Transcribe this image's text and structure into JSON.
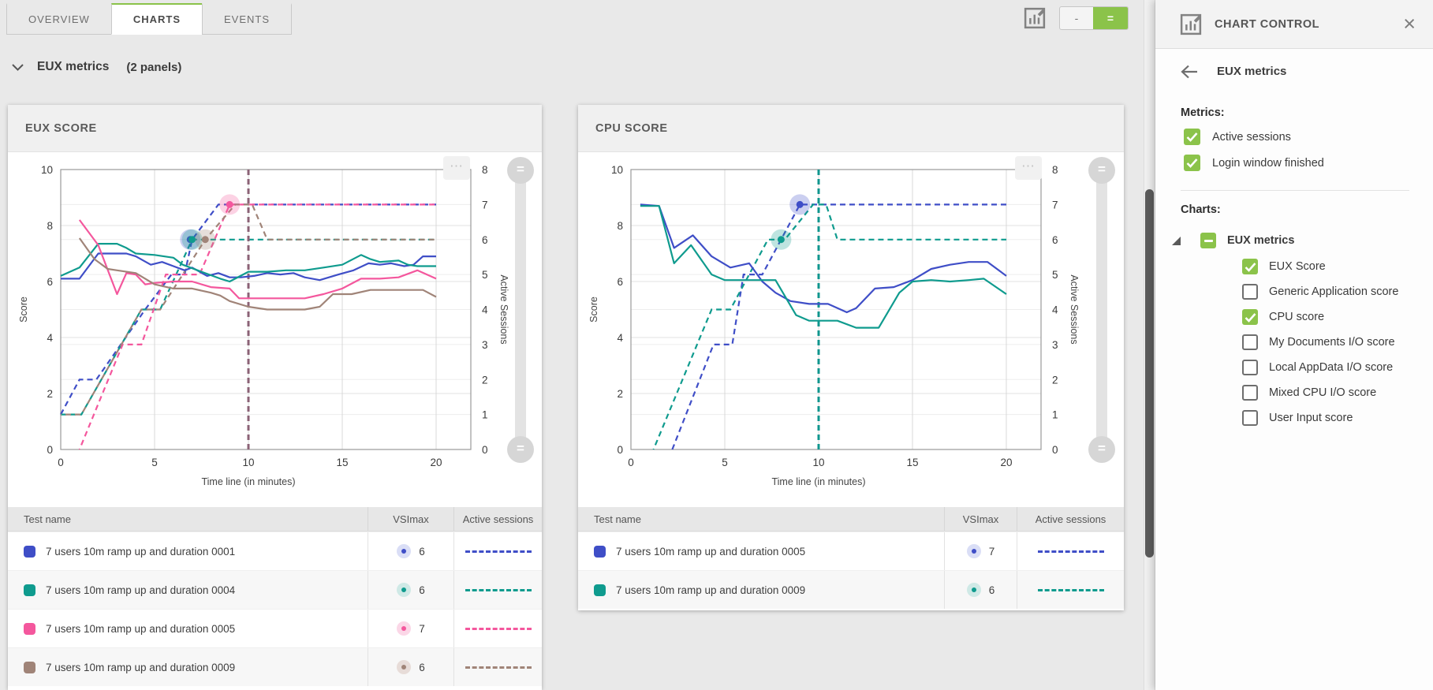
{
  "tabs": [
    {
      "id": "overview",
      "label": "OVERVIEW",
      "active": false
    },
    {
      "id": "charts",
      "label": "CHARTS",
      "active": true
    },
    {
      "id": "events",
      "label": "EVENTS",
      "active": false
    }
  ],
  "toolbar": {
    "minimize_label": "-",
    "grid_label": "=",
    "chart_edit_icon": "chart-edit"
  },
  "group_header": {
    "title": "EUX metrics",
    "panel_count": "(2 panels)"
  },
  "icons": {
    "more": "⋯",
    "equals": "=",
    "close": "×"
  },
  "colors": {
    "accent_green": "#8bc34a",
    "blue": "#3f4ec7",
    "teal": "#0f9b8e",
    "pink": "#f4579d",
    "brown": "#a08478"
  },
  "panels": [
    {
      "title": "EUX SCORE",
      "table": {
        "headers": [
          "Test name",
          "VSImax",
          "Active sessions"
        ],
        "rows": [
          {
            "name": "7 users 10m ramp up and duration 0001",
            "color": "#3f4ec7",
            "tint": "#dadef6",
            "vsimax": 6
          },
          {
            "name": "7 users 10m ramp up and duration 0004",
            "color": "#0f9b8e",
            "tint": "#cfe9e6",
            "vsimax": 6
          },
          {
            "name": "7 users 10m ramp up and duration 0005",
            "color": "#f4579d",
            "tint": "#fbd7e7",
            "vsimax": 7
          },
          {
            "name": "7 users 10m ramp up and duration 0009",
            "color": "#a08478",
            "tint": "#e7dcd8",
            "vsimax": 6
          }
        ]
      }
    },
    {
      "title": "CPU SCORE",
      "table": {
        "headers": [
          "Test name",
          "VSImax",
          "Active sessions"
        ],
        "rows": [
          {
            "name": "7 users 10m ramp up and duration 0005",
            "color": "#3f4ec7",
            "tint": "#dadef6",
            "vsimax": 7
          },
          {
            "name": "7 users 10m ramp up and duration 0009",
            "color": "#0f9b8e",
            "tint": "#cfe9e6",
            "vsimax": 6
          }
        ]
      }
    }
  ],
  "chart_data": [
    {
      "type": "line",
      "title": "EUX SCORE",
      "x_axis": {
        "label": "Time line (in minutes)",
        "ticks": [
          0,
          5,
          10,
          15,
          20
        ],
        "min": 0,
        "max": 20
      },
      "y_axis_left": {
        "label": "Score",
        "min": 0,
        "max": 10,
        "ticks": [
          0,
          2,
          4,
          6,
          8,
          10
        ]
      },
      "y_axis_right": {
        "label": "Active Sessions",
        "min": 0,
        "max": 8,
        "ticks": [
          0,
          1,
          2,
          3,
          4,
          5,
          6,
          7,
          8
        ]
      },
      "grid": true,
      "vlines": [
        {
          "x": 10,
          "color": "#8b6276"
        }
      ],
      "series": [
        {
          "name": "7 users 10m ramp up and duration 0001",
          "color": "#3f4ec7",
          "score": [
            [
              0,
              6.1
            ],
            [
              1,
              6.1
            ],
            [
              2,
              7.0
            ],
            [
              3.5,
              7.0
            ],
            [
              4,
              6.9
            ],
            [
              4.8,
              6.6
            ],
            [
              5.4,
              6.7
            ],
            [
              6,
              6.55
            ],
            [
              6.6,
              6.4
            ],
            [
              7,
              6.5
            ],
            [
              7.8,
              6.2
            ],
            [
              8.4,
              6.3
            ],
            [
              9,
              6.15
            ],
            [
              9.6,
              6.15
            ],
            [
              10.3,
              6.2
            ],
            [
              11,
              6.3
            ],
            [
              11.7,
              6.25
            ],
            [
              12.4,
              6.3
            ],
            [
              13,
              6.15
            ],
            [
              13.8,
              6.05
            ],
            [
              14.8,
              6.25
            ],
            [
              15.6,
              6.4
            ],
            [
              16.4,
              6.65
            ],
            [
              17,
              6.6
            ],
            [
              17.6,
              6.65
            ],
            [
              18.3,
              6.55
            ],
            [
              18.8,
              6.6
            ],
            [
              19.3,
              6.9
            ],
            [
              20,
              6.9
            ]
          ],
          "sessions": [
            [
              0,
              1
            ],
            [
              1,
              2
            ],
            [
              1.9,
              2
            ],
            [
              4.5,
              4
            ],
            [
              5.9,
              5
            ],
            [
              6.6,
              5
            ],
            [
              7,
              6
            ],
            [
              8.4,
              7
            ],
            [
              20,
              7
            ]
          ],
          "vsimax_marker": {
            "x": 6.9,
            "sessions": 6
          }
        },
        {
          "name": "7 users 10m ramp up and duration 0004",
          "color": "#0f9b8e",
          "score": [
            [
              0,
              6.2
            ],
            [
              1,
              6.5
            ],
            [
              2,
              7.35
            ],
            [
              3,
              7.35
            ],
            [
              3.5,
              7.2
            ],
            [
              4,
              7.0
            ],
            [
              5,
              6.95
            ],
            [
              6,
              6.85
            ],
            [
              6.5,
              6.6
            ],
            [
              7.5,
              6.35
            ],
            [
              8.5,
              6.1
            ],
            [
              9,
              6.0
            ],
            [
              10,
              6.35
            ],
            [
              11,
              6.35
            ],
            [
              12,
              6.4
            ],
            [
              13,
              6.4
            ],
            [
              14,
              6.5
            ],
            [
              15,
              6.6
            ],
            [
              16,
              6.95
            ],
            [
              16.5,
              6.8
            ],
            [
              17,
              6.7
            ],
            [
              18,
              6.75
            ],
            [
              18.5,
              6.6
            ],
            [
              19,
              6.55
            ],
            [
              20,
              6.55
            ]
          ],
          "sessions": [
            [
              0,
              1
            ],
            [
              1.1,
              1
            ],
            [
              4.3,
              4
            ],
            [
              5.3,
              4
            ],
            [
              7,
              6
            ],
            [
              20,
              6
            ]
          ],
          "vsimax_marker": {
            "x": 7,
            "sessions": 6
          }
        },
        {
          "name": "7 users 10m ramp up and duration 0005",
          "color": "#f4579d",
          "score": [
            [
              1,
              8.2
            ],
            [
              2,
              7.3
            ],
            [
              3,
              5.55
            ],
            [
              3.5,
              6.3
            ],
            [
              4,
              6.25
            ],
            [
              4.5,
              5.9
            ],
            [
              5,
              5.95
            ],
            [
              6,
              6.0
            ],
            [
              7,
              6.0
            ],
            [
              8,
              5.8
            ],
            [
              9,
              5.75
            ],
            [
              9.5,
              5.4
            ],
            [
              10,
              5.4
            ],
            [
              12,
              5.4
            ],
            [
              13,
              5.4
            ],
            [
              14,
              5.55
            ],
            [
              15,
              5.75
            ],
            [
              16,
              6.1
            ],
            [
              17,
              6.1
            ],
            [
              18,
              6.15
            ],
            [
              19,
              6.4
            ],
            [
              20,
              6.1
            ]
          ],
          "sessions": [
            [
              1,
              0
            ],
            [
              3.3,
              3
            ],
            [
              4.3,
              3
            ],
            [
              5.6,
              5
            ],
            [
              7.4,
              5
            ],
            [
              9,
              7
            ],
            [
              20,
              7
            ]
          ],
          "dash_offset": true,
          "vsimax_marker": {
            "x": 9,
            "sessions": 7
          }
        },
        {
          "name": "7 users 10m ramp up and duration 0009",
          "color": "#a08478",
          "score": [
            [
              1,
              7.55
            ],
            [
              1.8,
              6.8
            ],
            [
              2.5,
              6.45
            ],
            [
              3,
              6.4
            ],
            [
              4,
              6.3
            ],
            [
              5,
              5.9
            ],
            [
              6,
              5.75
            ],
            [
              7,
              5.75
            ],
            [
              8,
              5.6
            ],
            [
              8.5,
              5.5
            ],
            [
              9,
              5.3
            ],
            [
              10,
              5.1
            ],
            [
              11,
              5.0
            ],
            [
              12,
              5.0
            ],
            [
              13,
              5.0
            ],
            [
              13.8,
              5.1
            ],
            [
              14.5,
              5.55
            ],
            [
              15.5,
              5.55
            ],
            [
              16.5,
              5.7
            ],
            [
              17.5,
              5.7
            ],
            [
              18.5,
              5.7
            ],
            [
              19.3,
              5.7
            ],
            [
              20,
              5.45
            ]
          ],
          "sessions": [
            [
              0,
              1
            ],
            [
              1.1,
              1
            ],
            [
              4.3,
              4
            ],
            [
              5.3,
              4
            ],
            [
              7.7,
              6
            ],
            [
              9.3,
              7
            ],
            [
              10.2,
              7
            ],
            [
              11,
              6
            ],
            [
              20,
              6
            ]
          ],
          "dash_offset": true,
          "vsimax_marker": {
            "x": 7.7,
            "sessions": 6
          }
        }
      ]
    },
    {
      "type": "line",
      "title": "CPU SCORE",
      "x_axis": {
        "label": "Time line (in minutes)",
        "ticks": [
          0,
          5,
          10,
          15,
          20
        ],
        "min": 0,
        "max": 20
      },
      "y_axis_left": {
        "label": "Score",
        "min": 0,
        "max": 10,
        "ticks": [
          0,
          2,
          4,
          6,
          8,
          10
        ]
      },
      "y_axis_right": {
        "label": "Active Sessions",
        "min": 0,
        "max": 8,
        "ticks": [
          0,
          1,
          2,
          3,
          4,
          5,
          6,
          7,
          8
        ]
      },
      "grid": true,
      "vlines": [
        {
          "x": 10,
          "color": "#0f968e"
        }
      ],
      "series": [
        {
          "name": "7 users 10m ramp up and duration 0005",
          "color": "#3f4ec7",
          "score": [
            [
              0.5,
              8.75
            ],
            [
              1.5,
              8.7
            ],
            [
              2.3,
              7.2
            ],
            [
              3.3,
              7.65
            ],
            [
              4.3,
              6.9
            ],
            [
              5.3,
              6.5
            ],
            [
              6.3,
              6.65
            ],
            [
              7,
              6.0
            ],
            [
              7.7,
              5.6
            ],
            [
              8.5,
              5.3
            ],
            [
              9.5,
              5.2
            ],
            [
              10.5,
              5.2
            ],
            [
              11.5,
              4.9
            ],
            [
              12,
              5.05
            ],
            [
              13,
              5.75
            ],
            [
              14,
              5.8
            ],
            [
              15,
              6.05
            ],
            [
              16,
              6.45
            ],
            [
              17,
              6.6
            ],
            [
              18,
              6.7
            ],
            [
              19,
              6.7
            ],
            [
              20,
              6.2
            ]
          ],
          "sessions": [
            [
              2.2,
              0
            ],
            [
              4.4,
              3
            ],
            [
              5.4,
              3
            ],
            [
              6,
              5
            ],
            [
              7,
              5
            ],
            [
              9,
              7
            ],
            [
              20,
              7
            ]
          ],
          "vsimax_marker": {
            "x": 9,
            "sessions": 7
          }
        },
        {
          "name": "7 users 10m ramp up and duration 0009",
          "color": "#0f9b8e",
          "score": [
            [
              0.5,
              8.7
            ],
            [
              1.5,
              8.7
            ],
            [
              2.3,
              6.65
            ],
            [
              3.2,
              7.3
            ],
            [
              4.3,
              6.25
            ],
            [
              5,
              6.05
            ],
            [
              6,
              6.05
            ],
            [
              7,
              6.05
            ],
            [
              7.7,
              6.05
            ],
            [
              8.8,
              4.8
            ],
            [
              9.5,
              4.6
            ],
            [
              11,
              4.6
            ],
            [
              12,
              4.35
            ],
            [
              13.2,
              4.35
            ],
            [
              14.3,
              5.6
            ],
            [
              15,
              6.0
            ],
            [
              16,
              6.05
            ],
            [
              17,
              6.0
            ],
            [
              18,
              6.05
            ],
            [
              18.8,
              6.1
            ],
            [
              20,
              5.55
            ]
          ],
          "sessions": [
            [
              1.2,
              0
            ],
            [
              4.3,
              4
            ],
            [
              5.3,
              4
            ],
            [
              7.3,
              6
            ],
            [
              8.2,
              6
            ],
            [
              9.7,
              7
            ],
            [
              10.4,
              7
            ],
            [
              11,
              6
            ],
            [
              20,
              6
            ]
          ],
          "dash_offset": true,
          "vsimax_marker": {
            "x": 8,
            "sessions": 6
          }
        }
      ]
    }
  ],
  "chart_control": {
    "title": "CHART CONTROL",
    "back_label": "EUX metrics",
    "metrics_label": "Metrics:",
    "metrics": [
      {
        "label": "Active sessions",
        "checked": true
      },
      {
        "label": "Login window finished",
        "checked": true
      }
    ],
    "charts_label": "Charts:",
    "tree": {
      "label": "EUX metrics",
      "state": "indeterminate",
      "expanded": true,
      "children": [
        {
          "label": "EUX Score",
          "checked": true
        },
        {
          "label": "Generic Application score",
          "checked": false
        },
        {
          "label": "CPU score",
          "checked": true
        },
        {
          "label": "My Documents I/O score",
          "checked": false
        },
        {
          "label": "Local AppData I/O score",
          "checked": false
        },
        {
          "label": "Mixed CPU I/O score",
          "checked": false
        },
        {
          "label": "User Input score",
          "checked": false
        }
      ]
    }
  }
}
